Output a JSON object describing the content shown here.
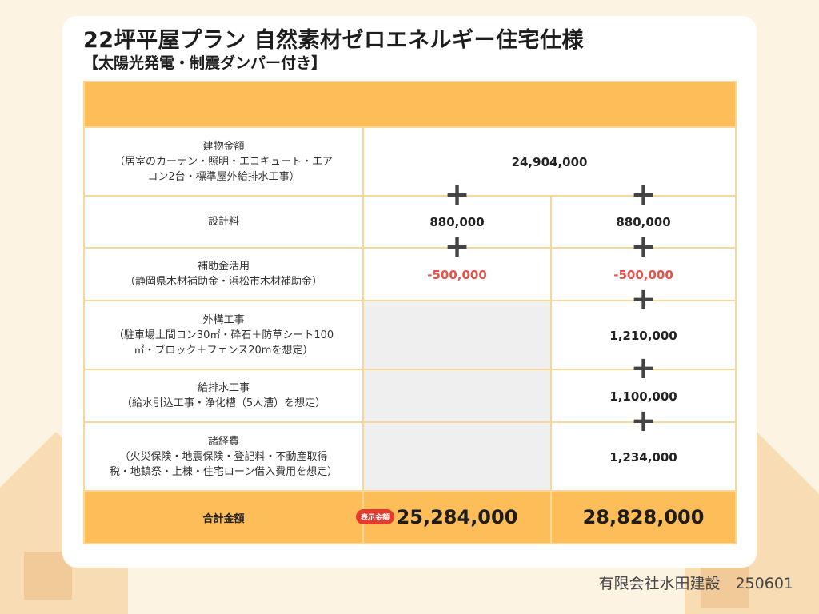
{
  "title": "22坪平屋プラン 自然素材ゼロエネルギー住宅仕様",
  "subtitle": "【太陽光発電・制震ダンパー付き】",
  "rows": [
    {
      "label_line1": "建物金額",
      "label_line2": "（居室のカーテン・照明・エコキュート・エア",
      "label_line3": "コン2台・標準屋外給排水工事）",
      "value_merged": "24,904,000"
    },
    {
      "label_line1": "設計料",
      "value_a": "880,000",
      "value_b": "880,000"
    },
    {
      "label_line1": "補助金活用",
      "label_line2": "（静岡県木材補助金・浜松市木材補助金）",
      "value_a": "-500,000",
      "value_b": "-500,000"
    },
    {
      "label_line1": "外構工事",
      "label_line2": "（駐車場土間コン30㎡・砕石＋防草シート100",
      "label_line3": "㎡・ブロック＋フェンス20mを想定）",
      "value_b": "1,210,000"
    },
    {
      "label_line1": "給排水工事",
      "label_line2": "（給水引込工事・浄化槽（5人漕）を想定）",
      "value_b": "1,100,000"
    },
    {
      "label_line1": "諸経費",
      "label_line2": "（火災保険・地震保険・登記料・不動産取得",
      "label_line3": "税・地鎮祭・上棟・住宅ローン借入費用を想定）",
      "value_b": "1,234,000"
    }
  ],
  "total": {
    "label": "合計金額",
    "badge": "表示金額",
    "value_a": "25,284,000",
    "value_b": "28,828,000"
  },
  "plus_symbol": "+",
  "footer": "有限会社水田建設　250601",
  "colors": {
    "accent": "#fdbe5a",
    "negative": "#e5534b",
    "badge": "#e63a2e",
    "border": "#f7d79a"
  }
}
